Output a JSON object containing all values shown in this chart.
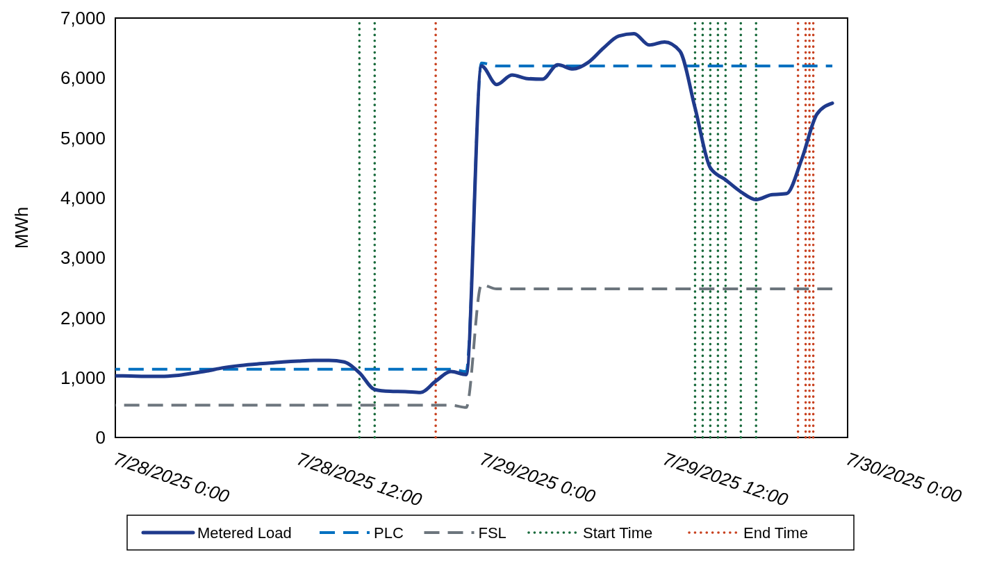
{
  "chart_data": {
    "type": "line",
    "ylabel": "MWh",
    "x": [
      "2025-07-28T00:00",
      "2025-07-28T01:00",
      "2025-07-28T02:00",
      "2025-07-28T03:00",
      "2025-07-28T04:00",
      "2025-07-28T05:00",
      "2025-07-28T06:00",
      "2025-07-28T07:00",
      "2025-07-28T08:00",
      "2025-07-28T09:00",
      "2025-07-28T10:00",
      "2025-07-28T11:00",
      "2025-07-28T12:00",
      "2025-07-28T13:00",
      "2025-07-28T14:00",
      "2025-07-28T15:00",
      "2025-07-28T16:00",
      "2025-07-28T17:00",
      "2025-07-28T18:00",
      "2025-07-28T19:00",
      "2025-07-28T20:00",
      "2025-07-28T21:00",
      "2025-07-28T22:00",
      "2025-07-28T23:00",
      "2025-07-29T00:00",
      "2025-07-29T01:00",
      "2025-07-29T02:00",
      "2025-07-29T03:00",
      "2025-07-29T04:00",
      "2025-07-29T05:00",
      "2025-07-29T06:00",
      "2025-07-29T07:00",
      "2025-07-29T08:00",
      "2025-07-29T09:00",
      "2025-07-29T10:00",
      "2025-07-29T11:00",
      "2025-07-29T12:00",
      "2025-07-29T13:00",
      "2025-07-29T14:00",
      "2025-07-29T15:00",
      "2025-07-29T16:00",
      "2025-07-29T17:00",
      "2025-07-29T18:00",
      "2025-07-29T19:00",
      "2025-07-29T20:00",
      "2025-07-29T21:00",
      "2025-07-29T22:00",
      "2025-07-29T23:00"
    ],
    "series": [
      {
        "name": "Metered Load",
        "color": "#1f3a8c",
        "line_style": "solid",
        "values": [
          1030,
          1025,
          1020,
          1020,
          1035,
          1070,
          1110,
          1160,
          1195,
          1220,
          1240,
          1260,
          1275,
          1285,
          1285,
          1260,
          1080,
          800,
          770,
          765,
          750,
          940,
          1100,
          1050,
          6200,
          5890,
          6050,
          5990,
          5980,
          6220,
          6150,
          6260,
          6500,
          6700,
          6740,
          6550,
          6600,
          6450,
          5500,
          4500,
          4300,
          4100,
          3970,
          4050,
          4070,
          4650,
          5400,
          5580
        ]
      },
      {
        "name": "PLC",
        "color": "#0070c0",
        "line_style": "dashed",
        "values": [
          1140,
          1140,
          1140,
          1140,
          1140,
          1140,
          1140,
          1140,
          1140,
          1140,
          1140,
          1140,
          1140,
          1140,
          1140,
          1140,
          1140,
          1140,
          1140,
          1140,
          1140,
          1140,
          1140,
          1100,
          6250,
          6200,
          6200,
          6200,
          6200,
          6200,
          6200,
          6200,
          6200,
          6200,
          6200,
          6200,
          6200,
          6200,
          6200,
          6200,
          6200,
          6200,
          6200,
          6200,
          6200,
          6200,
          6200,
          6200
        ]
      },
      {
        "name": "FSL",
        "color": "#6c757d",
        "line_style": "dashed",
        "values": [
          540,
          540,
          540,
          540,
          540,
          540,
          540,
          540,
          540,
          540,
          540,
          540,
          540,
          540,
          540,
          540,
          540,
          540,
          540,
          540,
          540,
          540,
          540,
          500,
          2550,
          2480,
          2480,
          2480,
          2480,
          2480,
          2480,
          2480,
          2480,
          2480,
          2480,
          2480,
          2480,
          2480,
          2480,
          2480,
          2480,
          2480,
          2480,
          2480,
          2480,
          2480,
          2480,
          2480
        ]
      }
    ],
    "ref_lines": [
      {
        "axis": "x",
        "value": "2025-07-28T16:00",
        "label": "Start Time",
        "color": "#16693a",
        "line_style": "dotted"
      },
      {
        "axis": "x",
        "value": "2025-07-28T17:00",
        "color": "#16693a",
        "line_style": "dotted"
      },
      {
        "axis": "x",
        "value": "2025-07-29T14:00",
        "color": "#16693a",
        "line_style": "dotted"
      },
      {
        "axis": "x",
        "value": "2025-07-29T14:30",
        "color": "#16693a",
        "line_style": "dotted"
      },
      {
        "axis": "x",
        "value": "2025-07-29T15:00",
        "color": "#16693a",
        "line_style": "dotted"
      },
      {
        "axis": "x",
        "value": "2025-07-29T15:30",
        "color": "#16693a",
        "line_style": "dotted"
      },
      {
        "axis": "x",
        "value": "2025-07-29T16:00",
        "color": "#16693a",
        "line_style": "dotted"
      },
      {
        "axis": "x",
        "value": "2025-07-29T17:00",
        "color": "#16693a",
        "line_style": "dotted"
      },
      {
        "axis": "x",
        "value": "2025-07-29T18:00",
        "color": "#16693a",
        "line_style": "dotted"
      },
      {
        "axis": "x",
        "value": "2025-07-28T21:00",
        "label": "End Time",
        "color": "#c8401e",
        "line_style": "dotted"
      },
      {
        "axis": "x",
        "value": "2025-07-29T20:45",
        "color": "#c8401e",
        "line_style": "dotted"
      },
      {
        "axis": "x",
        "value": "2025-07-29T21:15",
        "color": "#c8401e",
        "line_style": "dotted"
      },
      {
        "axis": "x",
        "value": "2025-07-29T21:30",
        "color": "#c8401e",
        "line_style": "dotted"
      },
      {
        "axis": "x",
        "value": "2025-07-29T21:45",
        "color": "#c8401e",
        "line_style": "dotted"
      }
    ],
    "xlim": [
      "2025-07-28T00:00",
      "2025-07-30T00:00"
    ],
    "xticks": [
      {
        "value": "2025-07-28T00:00",
        "label": "7/28/2025 0:00"
      },
      {
        "value": "2025-07-28T12:00",
        "label": "7/28/2025 12:00"
      },
      {
        "value": "2025-07-29T00:00",
        "label": "7/29/2025 0:00"
      },
      {
        "value": "2025-07-29T12:00",
        "label": "7/29/2025 12:00"
      },
      {
        "value": "2025-07-30T00:00",
        "label": "7/30/2025 0:00"
      }
    ],
    "ylim": [
      0,
      7000
    ],
    "yticks": [
      0,
      {
        "value": 1000,
        "label": "1,000"
      },
      {
        "value": 2000,
        "label": "2,000"
      },
      {
        "value": 3000,
        "label": "3,000"
      },
      {
        "value": 4000,
        "label": "4,000"
      },
      {
        "value": 5000,
        "label": "5,000"
      },
      {
        "value": 6000,
        "label": "6,000"
      },
      {
        "value": 7000,
        "label": "7,000"
      }
    ],
    "grid": false,
    "legend": "bottom"
  }
}
